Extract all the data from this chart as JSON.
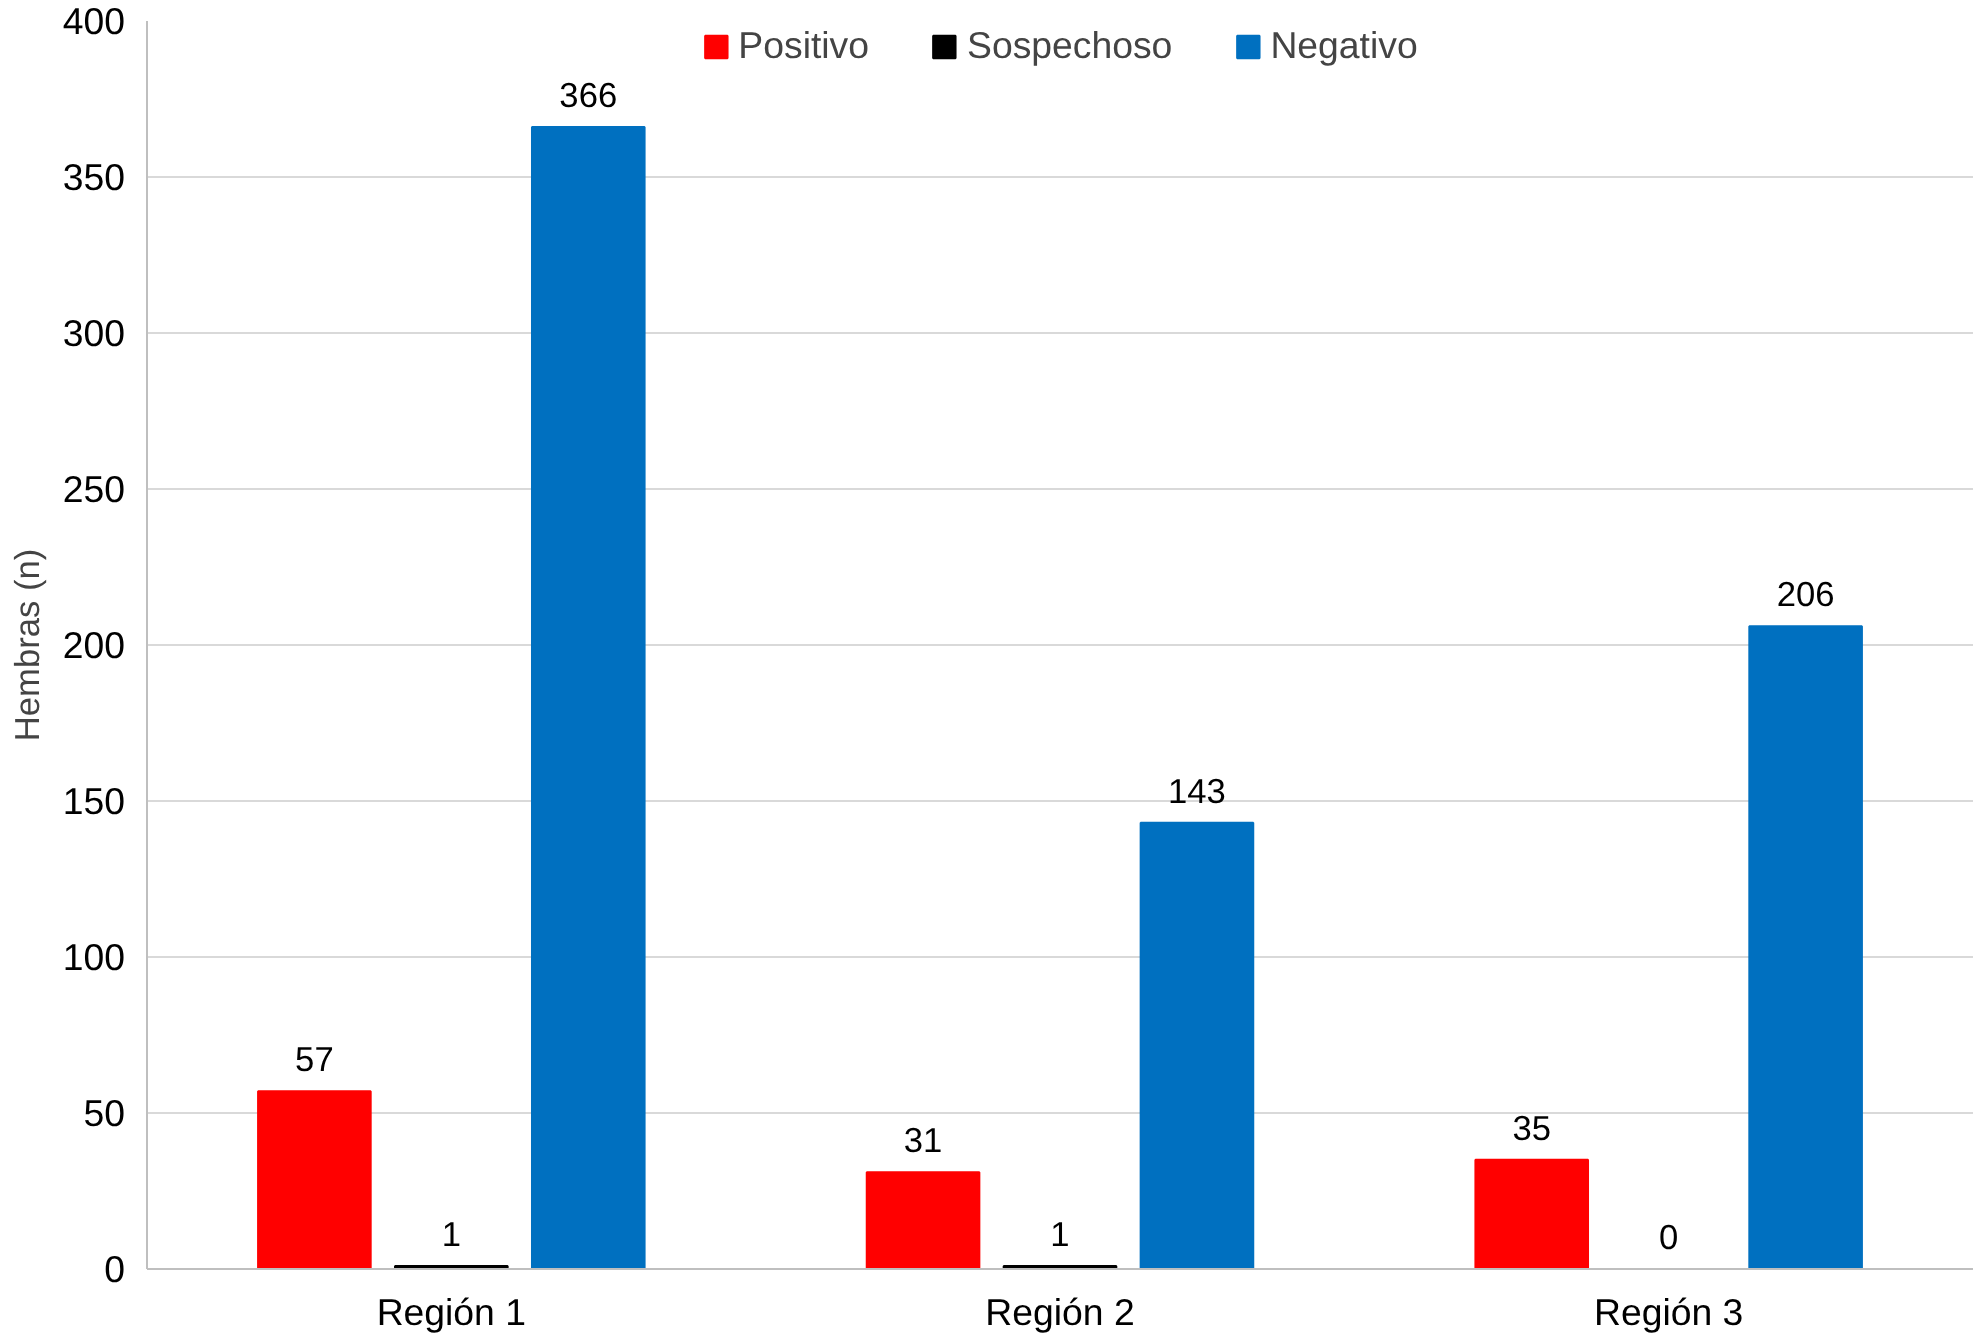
{
  "chart_data": {
    "type": "bar",
    "ylabel": "Hembras (n)",
    "categories": [
      "Región 1",
      "Región 2",
      "Región 3"
    ],
    "series": [
      {
        "name": "Positivo",
        "color": "#ff0000",
        "values": [
          57,
          31,
          35
        ]
      },
      {
        "name": "Sospechoso",
        "color": "#000000",
        "values": [
          1,
          1,
          0
        ]
      },
      {
        "name": "Negativo",
        "color": "#0070c0",
        "values": [
          366,
          143,
          206
        ]
      }
    ],
    "ylim": [
      0,
      400
    ],
    "yticks": [
      0,
      50,
      100,
      150,
      200,
      250,
      300,
      350,
      400
    ],
    "grid": "y",
    "legend": "top",
    "data_labels": true
  }
}
